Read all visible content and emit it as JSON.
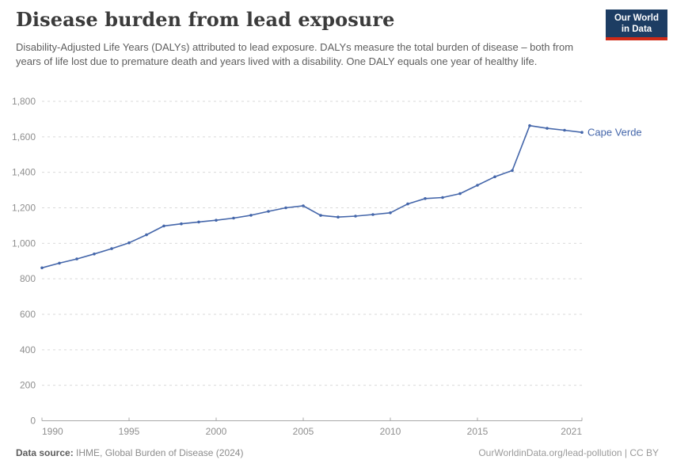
{
  "header": {
    "title": "Disease burden from lead exposure",
    "subtitle": "Disability-Adjusted Life Years (DALYs) attributed to lead exposure. DALYs measure the total burden of disease – both from years of life lost due to premature death and years lived with a disability. One DALY equals one year of healthy life.",
    "logo": {
      "line1": "Our World",
      "line2": "in Data",
      "bg_color": "#1d3d63",
      "accent_color": "#cf2a17"
    }
  },
  "chart_data": {
    "type": "line",
    "title": "Disease burden from lead exposure",
    "xlabel": "",
    "ylabel": "",
    "xlim": [
      1990,
      2021
    ],
    "ylim": [
      0,
      1800
    ],
    "x_ticks": [
      1990,
      1995,
      2000,
      2005,
      2010,
      2015,
      2021
    ],
    "y_ticks": [
      0,
      200,
      400,
      600,
      800,
      1000,
      1200,
      1400,
      1600,
      1800
    ],
    "y_tick_labels": [
      "0",
      "200",
      "400",
      "600",
      "800",
      "1,000",
      "1,200",
      "1,400",
      "1,600",
      "1,800"
    ],
    "grid": "horizontal-dashed",
    "legend_position": "end-of-line-label",
    "series": [
      {
        "name": "Cape Verde",
        "color": "#4466aa",
        "x": [
          1990,
          1991,
          1992,
          1993,
          1994,
          1995,
          1996,
          1997,
          1998,
          1999,
          2000,
          2001,
          2002,
          2003,
          2004,
          2005,
          2006,
          2007,
          2008,
          2009,
          2010,
          2011,
          2012,
          2013,
          2014,
          2015,
          2016,
          2017,
          2018,
          2019,
          2020,
          2021
        ],
        "values": [
          862,
          888,
          912,
          940,
          970,
          1003,
          1048,
          1098,
          1110,
          1120,
          1130,
          1142,
          1158,
          1180,
          1200,
          1211,
          1157,
          1148,
          1153,
          1162,
          1172,
          1222,
          1252,
          1258,
          1280,
          1327,
          1375,
          1410,
          1663,
          1648,
          1637,
          1625
        ]
      }
    ]
  },
  "footer": {
    "source_label": "Data source:",
    "source_value": " IHME, Global Burden of Disease (2024)",
    "rights": "OurWorldinData.org/lead-pollution | CC BY"
  },
  "colors": {
    "grid": "#d9d9d9",
    "axis": "#a8a8a8",
    "tick_label": "#8f8f8f"
  }
}
